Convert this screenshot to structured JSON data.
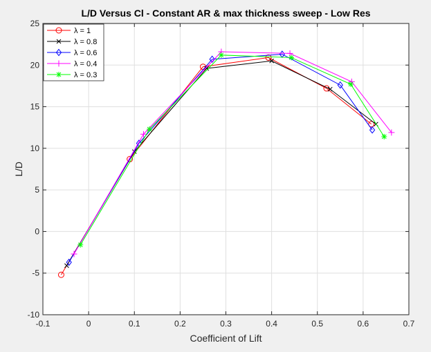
{
  "chart_data": {
    "type": "line",
    "title": "L/D Versus Cl - Constant AR & max thickness sweep - Low Res",
    "xlabel": "Coefficient of Lift",
    "ylabel": "L/D",
    "xlim": [
      -0.1,
      0.7
    ],
    "ylim": [
      -10,
      25
    ],
    "xticks": [
      -0.1,
      0,
      0.1,
      0.2,
      0.3,
      0.4,
      0.5,
      0.6,
      0.7
    ],
    "yticks": [
      -10,
      -5,
      0,
      5,
      10,
      15,
      20,
      25
    ],
    "xtick_labels": [
      "-0.1",
      "0",
      "0.1",
      "0.2",
      "0.3",
      "0.4",
      "0.5",
      "0.6",
      "0.7"
    ],
    "ytick_labels": [
      "-10",
      "-5",
      "0",
      "5",
      "10",
      "15",
      "20",
      "25"
    ],
    "grid": true,
    "legend_position": "top-left",
    "series": [
      {
        "name": "λ = 1",
        "color": "#ff0000",
        "marker": "circle",
        "x": [
          -0.06,
          0.09,
          0.25,
          0.393,
          0.52,
          0.618
        ],
        "y": [
          -5.2,
          8.7,
          19.8,
          20.9,
          17.2,
          12.9
        ]
      },
      {
        "name": "λ = 0.8",
        "color": "#000000",
        "marker": "x",
        "x": [
          -0.048,
          0.1,
          0.258,
          0.4,
          0.528,
          0.628
        ],
        "y": [
          -4.1,
          9.6,
          19.6,
          20.5,
          17.1,
          12.9
        ]
      },
      {
        "name": "λ = 0.6",
        "color": "#0000ff",
        "marker": "diamond",
        "x": [
          -0.043,
          0.11,
          0.27,
          0.423,
          0.55,
          0.62
        ],
        "y": [
          -3.7,
          10.6,
          20.7,
          21.3,
          17.6,
          12.2
        ]
      },
      {
        "name": "λ = 0.4",
        "color": "#ff00ff",
        "marker": "plus",
        "x": [
          -0.032,
          0.12,
          0.29,
          0.44,
          0.575,
          0.662
        ],
        "y": [
          -2.7,
          11.7,
          21.6,
          21.4,
          18.0,
          11.9
        ]
      },
      {
        "name": "λ = 0.3",
        "color": "#00ff00",
        "marker": "asterisk",
        "x": [
          -0.018,
          0.133,
          0.29,
          0.443,
          0.573,
          0.646
        ],
        "y": [
          -1.6,
          12.3,
          21.2,
          20.9,
          17.7,
          11.4
        ]
      }
    ]
  }
}
